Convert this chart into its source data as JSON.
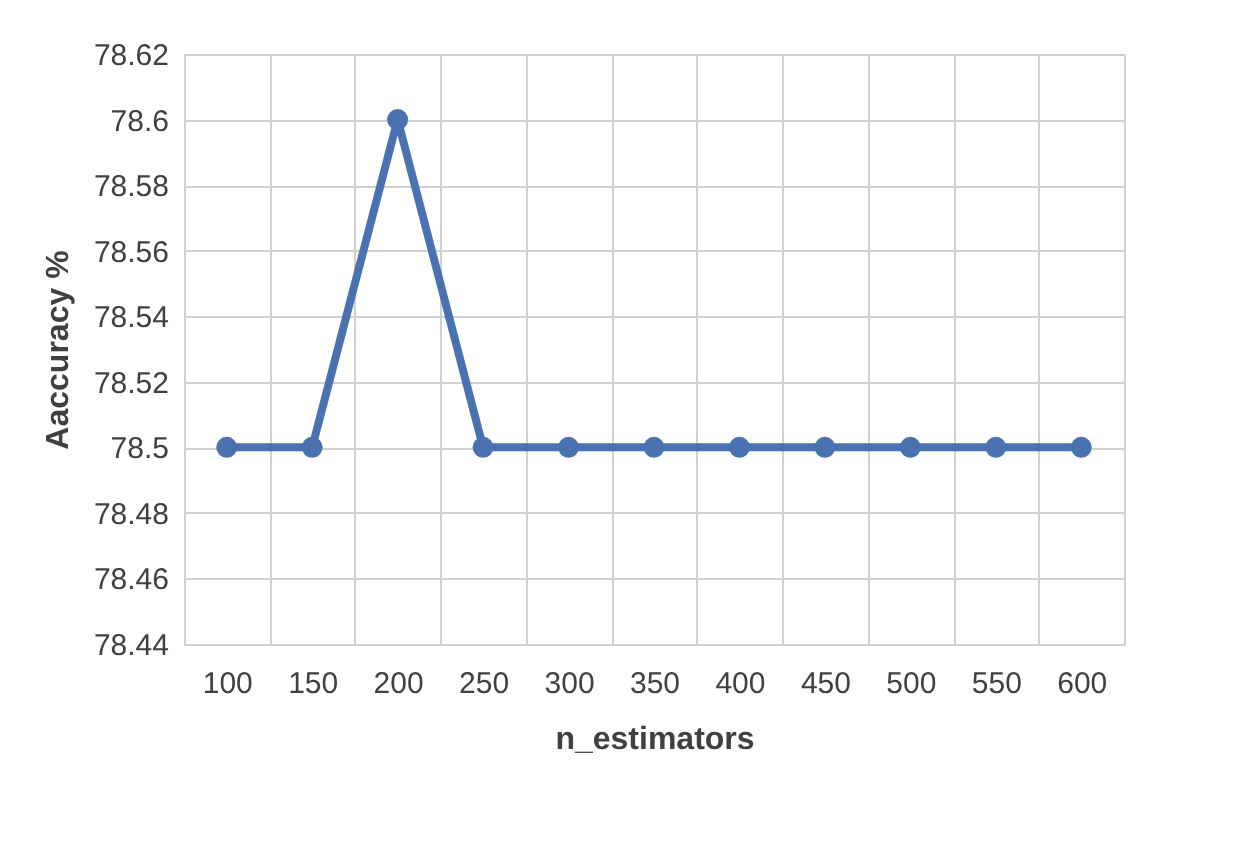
{
  "chart_data": {
    "type": "line",
    "xlabel": "n_estimators",
    "ylabel": "Aaccuracy %",
    "categories": [
      "100",
      "150",
      "200",
      "250",
      "300",
      "350",
      "400",
      "450",
      "500",
      "550",
      "600"
    ],
    "series": [
      {
        "color": "#4a72b0",
        "values": [
          78.5,
          78.5,
          78.6,
          78.5,
          78.5,
          78.5,
          78.5,
          78.5,
          78.5,
          78.5,
          78.5
        ]
      }
    ],
    "ylim": [
      78.44,
      78.62
    ],
    "yticks": [
      78.44,
      78.46,
      78.48,
      {
        "value": 78.5,
        "label": "78.5"
      },
      78.52,
      78.54,
      78.56,
      78.58,
      {
        "value": 78.6,
        "label": "78.6"
      },
      78.62
    ],
    "grid": true,
    "marker": "circle",
    "line_style": "solid"
  }
}
